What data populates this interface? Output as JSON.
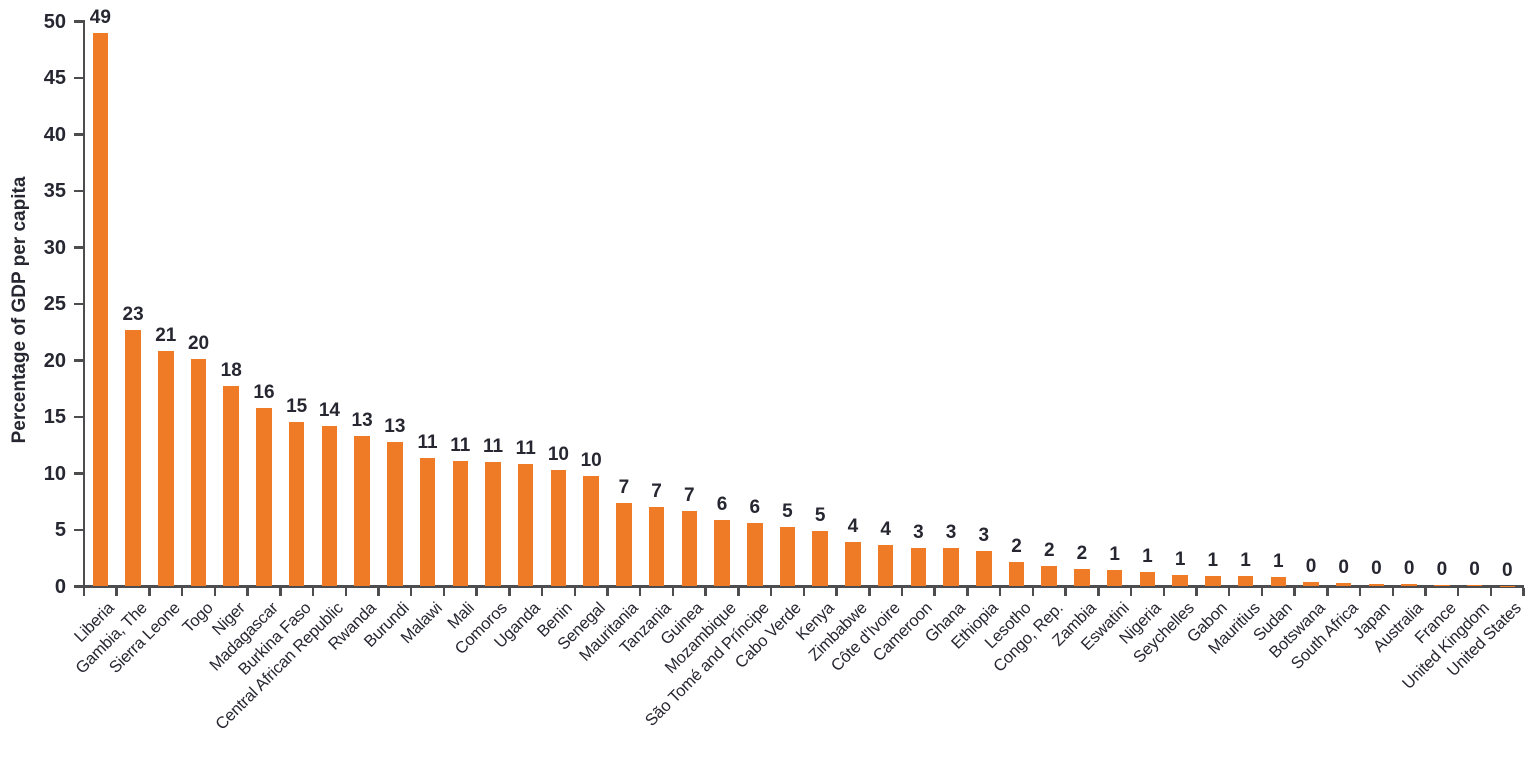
{
  "chart_data": {
    "type": "bar",
    "title": "",
    "xlabel": "",
    "ylabel": "Percentage of GDP per capita",
    "ylim": [
      0,
      50
    ],
    "yticks": [
      0,
      5,
      10,
      15,
      20,
      25,
      30,
      35,
      40,
      45,
      50
    ],
    "grid": false,
    "legend": false,
    "value_labels_shown": true,
    "categories": [
      "Liberia",
      "Gambia, The",
      "Sierra Leone",
      "Togo",
      "Niger",
      "Madagascar",
      "Burkina Faso",
      "Central African Republic",
      "Rwanda",
      "Burundi",
      "Malawi",
      "Mali",
      "Comoros",
      "Uganda",
      "Benin",
      "Senegal",
      "Mauritania",
      "Tanzania",
      "Guinea",
      "Mozambique",
      "São Tomé and Príncipe",
      "Cabo Verde",
      "Kenya",
      "Zimbabwe",
      "Côte d'Ivoire",
      "Cameroon",
      "Ghana",
      "Ethiopia",
      "Lesotho",
      "Congo, Rep.",
      "Zambia",
      "Eswatini",
      "Nigeria",
      "Seychelles",
      "Gabon",
      "Mauritius",
      "Sudan",
      "Botswana",
      "South Africa",
      "Japan",
      "Australia",
      "France",
      "United Kingdom",
      "United States"
    ],
    "values": [
      49,
      23,
      21,
      20,
      18,
      16,
      15,
      14,
      13,
      13,
      11,
      11,
      11,
      11,
      10,
      10,
      7,
      7,
      7,
      6,
      6,
      5,
      5,
      4,
      4,
      3,
      3,
      3,
      2,
      2,
      2,
      1,
      1,
      1,
      1,
      1,
      1,
      0,
      0,
      0,
      0,
      0,
      0,
      0
    ],
    "bar_heights_estimated": [
      49.0,
      22.7,
      20.8,
      20.1,
      17.7,
      15.8,
      14.6,
      14.2,
      13.3,
      12.8,
      11.4,
      11.15,
      11.05,
      10.85,
      10.35,
      9.75,
      7.35,
      7.05,
      6.65,
      5.85,
      5.65,
      5.25,
      4.95,
      3.9,
      3.7,
      3.45,
      3.4,
      3.1,
      2.2,
      1.8,
      1.55,
      1.45,
      1.3,
      1.0,
      0.95,
      0.9,
      0.8,
      0.4,
      0.35,
      0.25,
      0.2,
      0.15,
      0.15,
      0.08
    ]
  },
  "colors": {
    "bar": "#EF7B26",
    "text": "#272732",
    "axis": "#4D4D50",
    "background": "#FFFFFF"
  }
}
